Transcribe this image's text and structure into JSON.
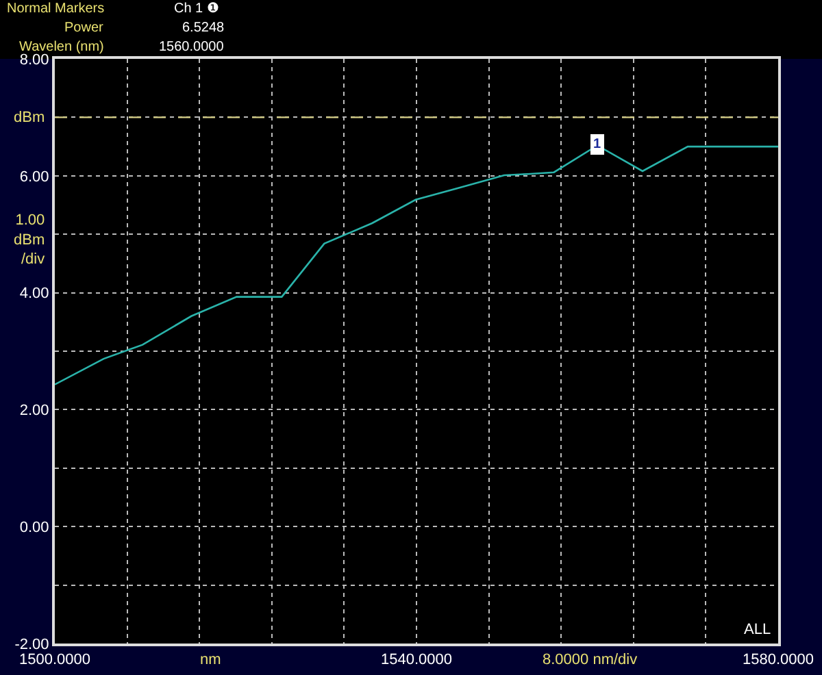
{
  "chart_data": {
    "type": "line",
    "xlabel": null,
    "x": [
      1500,
      1505.4,
      1509.7,
      1515.1,
      1520.1,
      1525.1,
      1529.8,
      1535.1,
      1539.9,
      1544.4,
      1549.7,
      1552.3,
      1555.2,
      1560,
      1565,
      1570,
      1572.4,
      1580
    ],
    "series": [
      {
        "color": "#2ab3aa",
        "values": [
          2.43,
          2.87,
          3.11,
          3.6,
          3.93,
          3.93,
          4.84,
          5.19,
          5.59,
          5.78,
          6.01,
          6.03,
          6.06,
          6.52,
          6.08,
          6.5,
          6.5,
          6.5
        ]
      }
    ],
    "xlim": [
      1500,
      1580
    ],
    "xticks": [
      {
        "value": 1500,
        "label": "1500.0000"
      },
      {
        "value": 1508,
        "label": null
      },
      {
        "value": 1516,
        "label": null
      },
      {
        "value": 1524,
        "label": null
      },
      {
        "value": 1532,
        "label": null
      },
      {
        "value": 1540,
        "label": "1540.0000"
      },
      {
        "value": 1548,
        "label": null
      },
      {
        "value": 1556,
        "label": null
      },
      {
        "value": 1564,
        "label": null
      },
      {
        "value": 1572,
        "label": null
      },
      {
        "value": 1580,
        "label": "1580.0000"
      }
    ],
    "ylim": [
      -2,
      8
    ],
    "yticks": [
      {
        "value": -2,
        "label": "-2.00"
      },
      {
        "value": -1,
        "label": null
      },
      {
        "value": 0,
        "label": "0.00"
      },
      {
        "value": 1,
        "label": null
      },
      {
        "value": 2,
        "label": "2.00"
      },
      {
        "value": 3,
        "label": null
      },
      {
        "value": 4,
        "label": "4.00"
      },
      {
        "value": 5,
        "label": null
      },
      {
        "value": 6,
        "label": "6.00"
      },
      {
        "value": 7,
        "label": null
      },
      {
        "value": 8,
        "label": "8.00"
      }
    ],
    "ref_lines": [
      {
        "axis": "y",
        "value": 7,
        "label": "dBm",
        "color": "#d8d088",
        "line_style": "dashed"
      }
    ],
    "annotations": [
      "Normal Markers",
      "Power",
      "Wavelen (nm)",
      "Ch 1 ❶",
      "6.5248",
      "1560.0000",
      "1.00\ndBm\n/div",
      "nm",
      "8.0000 nm/div",
      "ALL",
      {
        "text": "1",
        "x": 1560,
        "y": 6.5248
      }
    ],
    "grid": true,
    "marker": "none",
    "line_style": "solid"
  }
}
